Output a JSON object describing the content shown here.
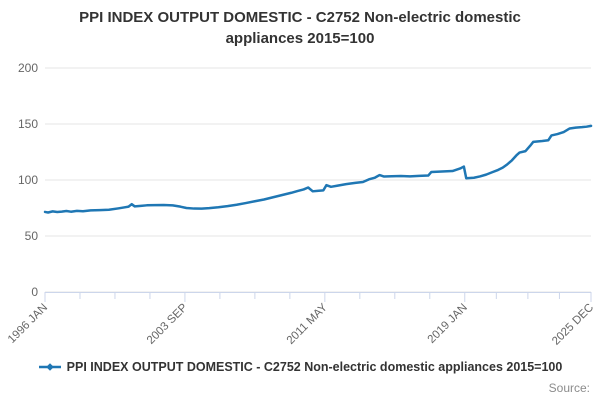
{
  "title": "PPI INDEX OUTPUT DOMESTIC - C2752 Non-electric domestic appliances 2015=100",
  "legend": {
    "label": "PPI INDEX OUTPUT DOMESTIC - C2752 Non-electric domestic appliances 2015=100"
  },
  "source_label": "Source:",
  "colors": {
    "line": "#1f77b4",
    "grid": "#e6e6e6",
    "axis": "#ccd6eb",
    "tick_label": "#666666",
    "title_text": "#333333",
    "source_text": "#8c8c8c"
  },
  "chart_data": {
    "type": "line",
    "title": "PPI INDEX OUTPUT DOMESTIC - C2752 Non-electric domestic appliances 2015=100",
    "xlabel": "",
    "ylabel": "",
    "ylim": [
      0,
      200
    ],
    "y_ticks": [
      0,
      50,
      100,
      150,
      200
    ],
    "x_tick_labels": [
      "1996 JAN",
      "2003 SEP",
      "2011 MAY",
      "2019 JAN",
      "2025 DEC"
    ],
    "x_major_months": [
      0,
      92,
      184,
      276,
      359
    ],
    "x_range_months": [
      0,
      359
    ],
    "x_start_year": 1996,
    "grid": "horizontal",
    "legend_position": "bottom",
    "series": [
      {
        "name": "PPI INDEX OUTPUT DOMESTIC - C2752 Non-electric domestic appliances 2015=100",
        "points": [
          [
            1996.0,
            71.5
          ],
          [
            1996.17,
            71.0
          ],
          [
            1996.42,
            72.0
          ],
          [
            1996.67,
            71.4
          ],
          [
            1996.92,
            71.8
          ],
          [
            1997.17,
            72.3
          ],
          [
            1997.42,
            71.7
          ],
          [
            1997.75,
            72.4
          ],
          [
            1998.08,
            72.1
          ],
          [
            1998.5,
            72.9
          ],
          [
            1999.0,
            73.1
          ],
          [
            1999.5,
            73.4
          ],
          [
            2000.0,
            74.6
          ],
          [
            2000.33,
            75.5
          ],
          [
            2000.58,
            76.2
          ],
          [
            2000.75,
            78.4
          ],
          [
            2000.92,
            76.4
          ],
          [
            2001.25,
            76.9
          ],
          [
            2001.58,
            77.4
          ],
          [
            2002.0,
            77.6
          ],
          [
            2002.5,
            77.7
          ],
          [
            2003.0,
            77.3
          ],
          [
            2003.42,
            76.2
          ],
          [
            2003.75,
            75.0
          ],
          [
            2004.17,
            74.5
          ],
          [
            2004.58,
            74.4
          ],
          [
            2005.0,
            74.9
          ],
          [
            2005.5,
            75.7
          ],
          [
            2006.0,
            76.7
          ],
          [
            2006.5,
            77.9
          ],
          [
            2007.0,
            79.4
          ],
          [
            2007.5,
            81.0
          ],
          [
            2008.0,
            82.6
          ],
          [
            2008.5,
            84.6
          ],
          [
            2009.0,
            86.6
          ],
          [
            2009.5,
            88.6
          ],
          [
            2009.83,
            90.1
          ],
          [
            2010.17,
            91.6
          ],
          [
            2010.42,
            93.3
          ],
          [
            2010.67,
            89.9
          ],
          [
            2011.0,
            90.4
          ],
          [
            2011.25,
            90.7
          ],
          [
            2011.42,
            95.4
          ],
          [
            2011.67,
            93.9
          ],
          [
            2012.0,
            94.9
          ],
          [
            2012.5,
            96.3
          ],
          [
            2013.0,
            97.4
          ],
          [
            2013.42,
            98.2
          ],
          [
            2013.75,
            100.6
          ],
          [
            2014.08,
            102.1
          ],
          [
            2014.33,
            104.4
          ],
          [
            2014.58,
            103.1
          ],
          [
            2015.0,
            103.3
          ],
          [
            2015.5,
            103.6
          ],
          [
            2016.0,
            103.2
          ],
          [
            2016.5,
            103.7
          ],
          [
            2017.0,
            104.0
          ],
          [
            2017.17,
            107.2
          ],
          [
            2017.75,
            107.6
          ],
          [
            2018.33,
            108.0
          ],
          [
            2018.75,
            110.3
          ],
          [
            2018.95,
            112.0
          ],
          [
            2019.08,
            101.6
          ],
          [
            2019.5,
            102.0
          ],
          [
            2019.83,
            103.2
          ],
          [
            2020.17,
            104.8
          ],
          [
            2020.5,
            106.9
          ],
          [
            2020.83,
            109.0
          ],
          [
            2021.08,
            111.0
          ],
          [
            2021.33,
            114.0
          ],
          [
            2021.58,
            117.5
          ],
          [
            2021.83,
            122.0
          ],
          [
            2022.0,
            124.5
          ],
          [
            2022.33,
            125.8
          ],
          [
            2022.58,
            130.5
          ],
          [
            2022.75,
            134.0
          ],
          [
            2023.25,
            134.8
          ],
          [
            2023.58,
            135.5
          ],
          [
            2023.75,
            139.8
          ],
          [
            2024.08,
            141.0
          ],
          [
            2024.42,
            142.8
          ],
          [
            2024.75,
            146.0
          ],
          [
            2025.08,
            146.8
          ],
          [
            2025.42,
            147.2
          ],
          [
            2025.67,
            147.6
          ],
          [
            2025.92,
            148.3
          ]
        ]
      }
    ]
  }
}
